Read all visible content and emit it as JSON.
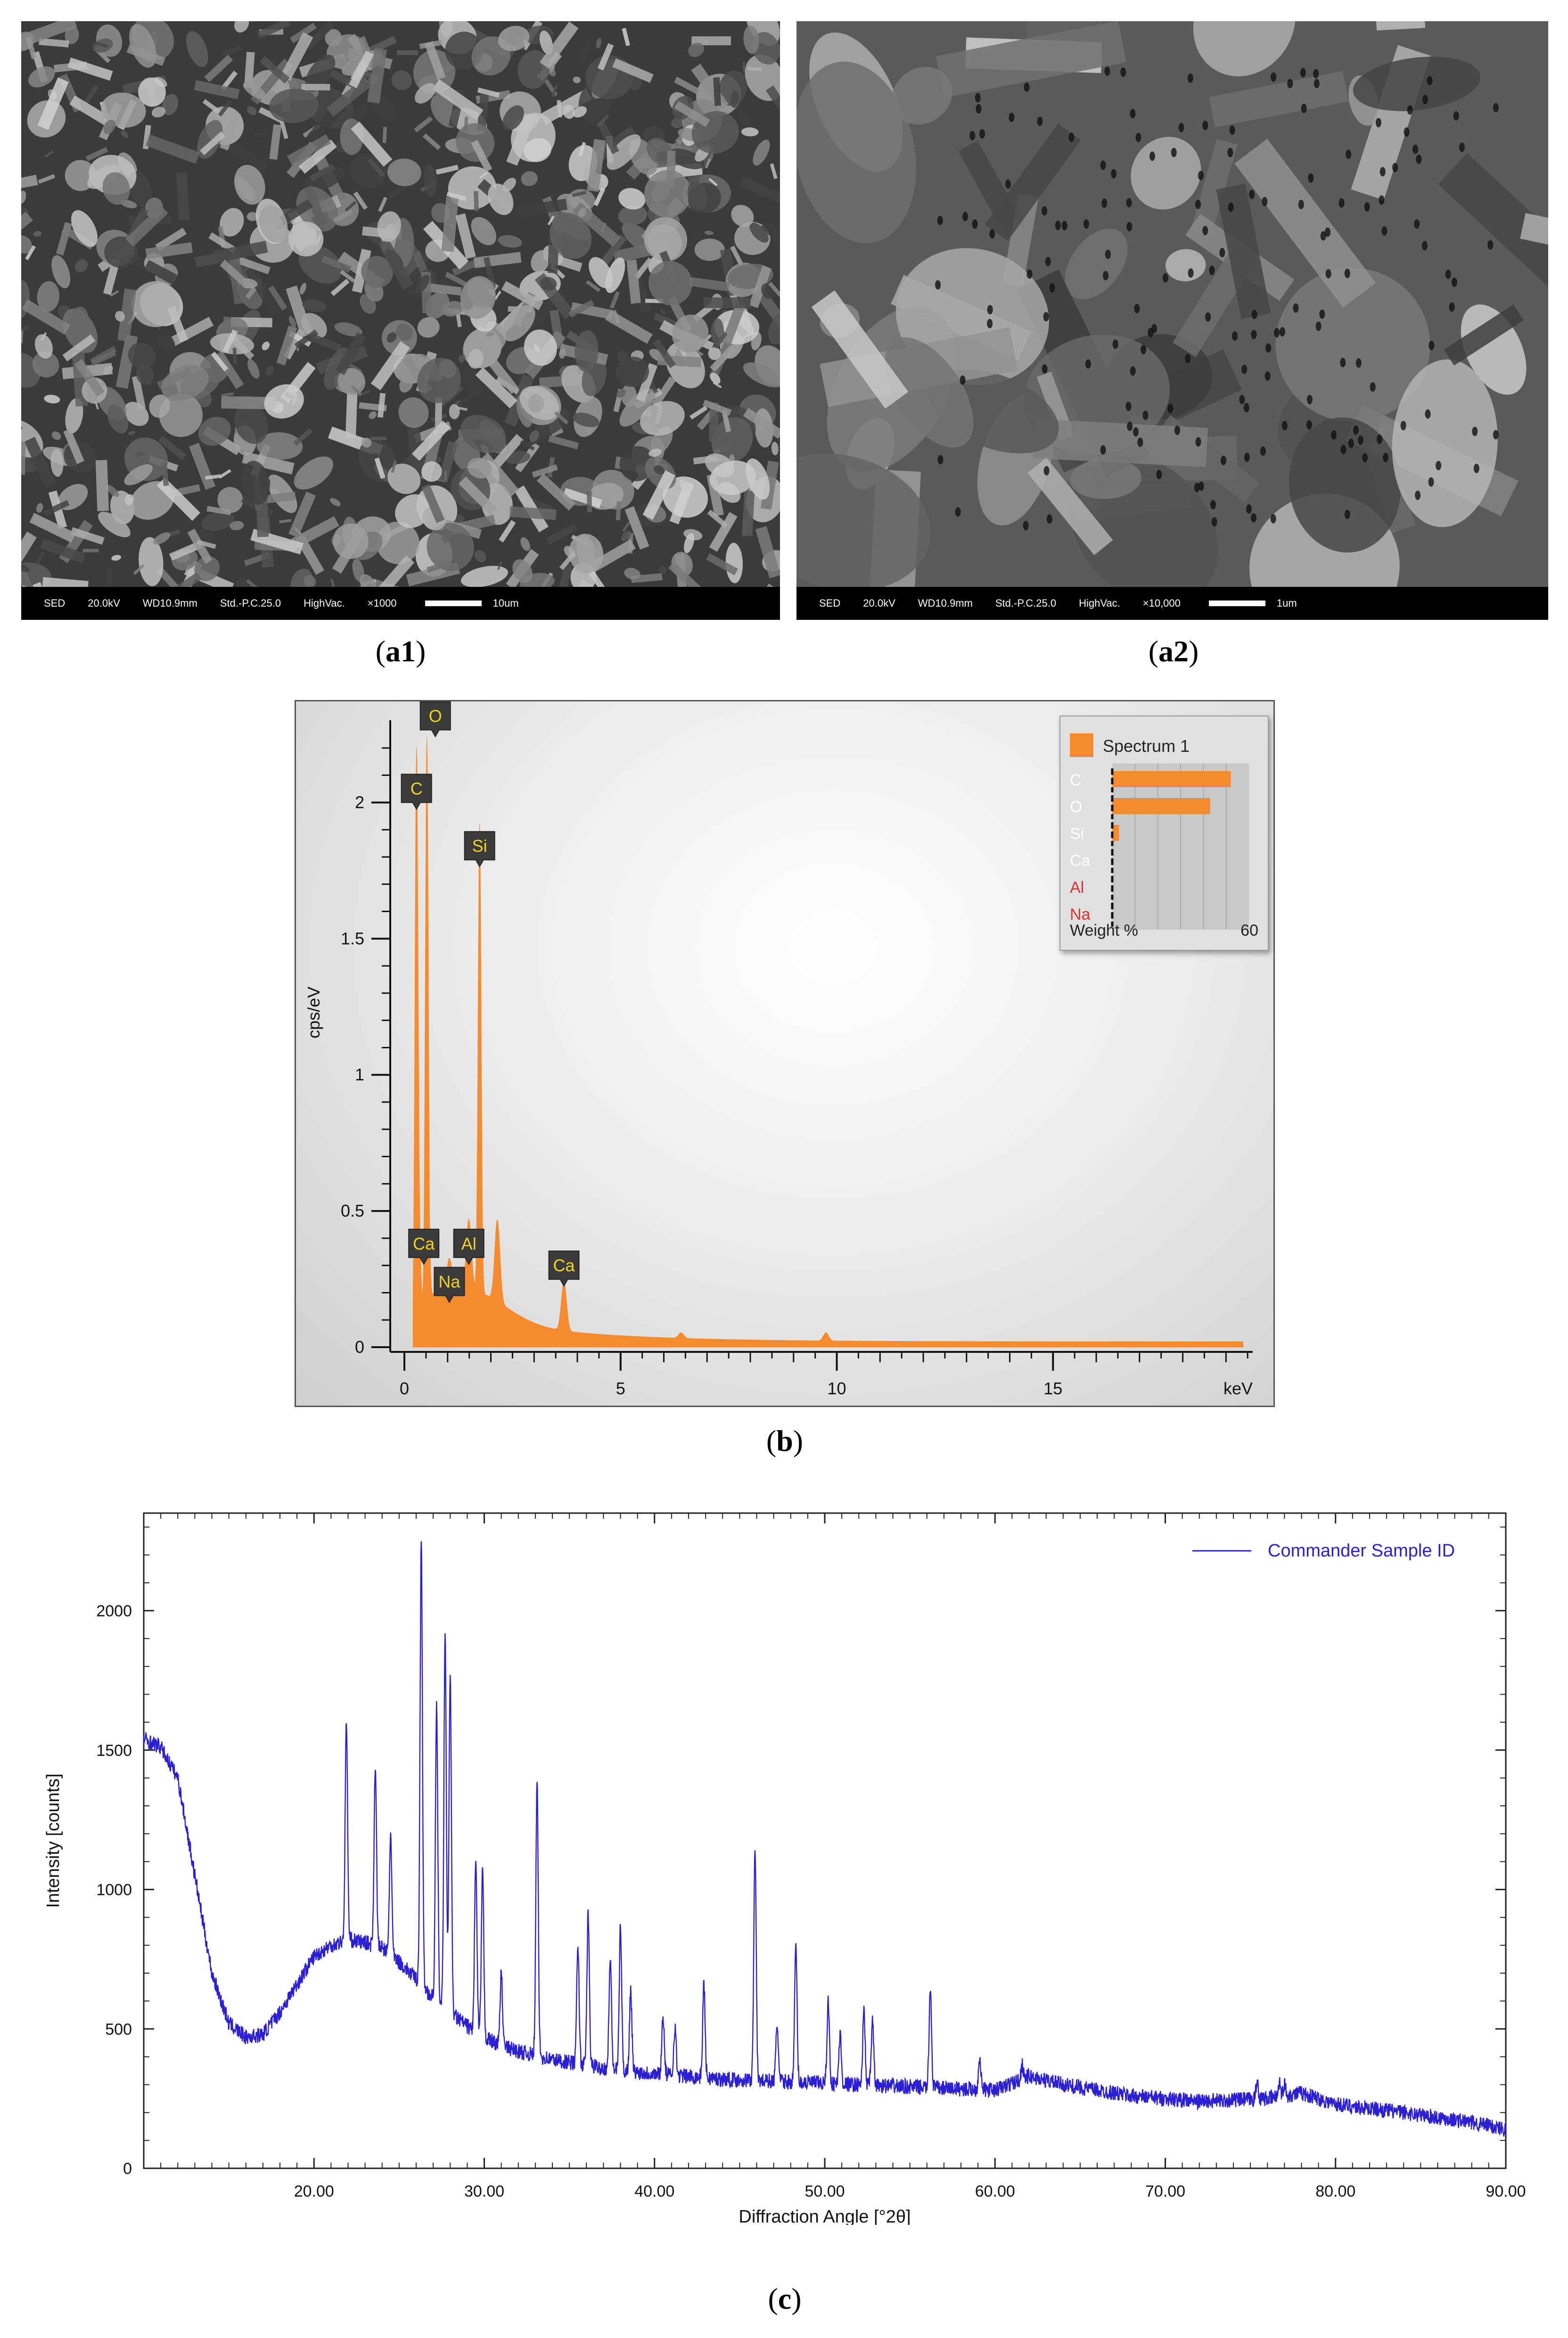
{
  "panels": {
    "a1": {
      "label_main": "a",
      "label_num": "1"
    },
    "a2": {
      "label_main": "a",
      "label_num": "2"
    },
    "b": {
      "label_main": "b"
    },
    "c": {
      "label_main": "c"
    }
  },
  "sem_images": [
    {
      "mode": "SED",
      "voltage": "20.0kV",
      "wd": "WD10.9mm",
      "std": "Std.-P.C.25.0",
      "vac": "HighVac.",
      "mag": "×1000",
      "scale": "10um"
    },
    {
      "mode": "SED",
      "voltage": "20.0kV",
      "wd": "WD10.9mm",
      "std": "Std.-P.C.25.0",
      "vac": "HighVac.",
      "mag": "×10,000",
      "scale": "1um"
    }
  ],
  "colors": {
    "eds_fill": "#F58B2E",
    "xrd_line": "#2B1FD6",
    "legend_red": "#E03030"
  },
  "chart_data": [
    {
      "type": "area",
      "panel": "b",
      "ylabel": "cps/eV",
      "xlabel": "keV",
      "xlim": [
        0,
        20
      ],
      "ylim": [
        0,
        2.25
      ],
      "xticks": [
        "0",
        "5",
        "10",
        "15"
      ],
      "yticks": [
        "0",
        "0.5",
        "1",
        "1.5",
        "2"
      ],
      "peaks": [
        {
          "element": "C",
          "x": 0.28,
          "y": 2.0
        },
        {
          "element": "O",
          "x": 0.52,
          "y": 2.18
        },
        {
          "element": "Ca",
          "x": 0.34,
          "y": 0.26
        },
        {
          "element": "Na",
          "x": 1.04,
          "y": 0.12
        },
        {
          "element": "Al",
          "x": 1.49,
          "y": 0.26
        },
        {
          "element": "Si",
          "x": 1.74,
          "y": 1.72
        },
        {
          "element": "Ca",
          "x": 3.69,
          "y": 0.18
        }
      ],
      "minor_peaks": [
        {
          "x": 2.15,
          "y": 0.3
        },
        {
          "x": 9.75,
          "y": 0.03
        },
        {
          "x": 6.4,
          "y": 0.02
        }
      ],
      "legend": {
        "title": "Spectrum 1",
        "elements": [
          {
            "name": "C",
            "weight": 52,
            "color": "#ffffff"
          },
          {
            "name": "O",
            "weight": 43,
            "color": "#ffffff"
          },
          {
            "name": "Si",
            "weight": 3,
            "color": "#ffffff"
          },
          {
            "name": "Ca",
            "weight": 0,
            "color": "#ffffff"
          },
          {
            "name": "Al",
            "weight": 0,
            "color": "#E03030"
          },
          {
            "name": "Na",
            "weight": 0,
            "color": "#E03030"
          }
        ],
        "axis_label": "Weight %",
        "axis_max": "60"
      }
    },
    {
      "type": "line",
      "panel": "c",
      "xlabel": "Diffraction Angle [°2θ]",
      "ylabel": "Intensity [counts]",
      "xlim": [
        10,
        90
      ],
      "ylim": [
        0,
        2350
      ],
      "xticks": [
        "20.00",
        "30.00",
        "40.00",
        "50.00",
        "60.00",
        "70.00",
        "80.00",
        "90.00"
      ],
      "yticks": [
        "0",
        "500",
        "1000",
        "1500",
        "2000"
      ],
      "series": [
        {
          "name": "Commander Sample ID",
          "baseline": [
            [
              10,
              1540
            ],
            [
              11,
              1510
            ],
            [
              12,
              1400
            ],
            [
              13,
              1050
            ],
            [
              14,
              700
            ],
            [
              15,
              520
            ],
            [
              16,
              470
            ],
            [
              17,
              480
            ],
            [
              18,
              560
            ],
            [
              19,
              660
            ],
            [
              20,
              760
            ],
            [
              21,
              800
            ],
            [
              22,
              820
            ],
            [
              23,
              810
            ],
            [
              24,
              790
            ],
            [
              25,
              740
            ],
            [
              26,
              680
            ],
            [
              27,
              610
            ],
            [
              28,
              560
            ],
            [
              29,
              510
            ],
            [
              30,
              470
            ],
            [
              31,
              440
            ],
            [
              32,
              420
            ],
            [
              34,
              390
            ],
            [
              36,
              370
            ],
            [
              38,
              350
            ],
            [
              40,
              340
            ],
            [
              44,
              320
            ],
            [
              48,
              310
            ],
            [
              52,
              300
            ],
            [
              56,
              290
            ],
            [
              60,
              280
            ],
            [
              62,
              330
            ],
            [
              64,
              300
            ],
            [
              68,
              260
            ],
            [
              72,
              240
            ],
            [
              76,
              250
            ],
            [
              78,
              270
            ],
            [
              80,
              230
            ],
            [
              84,
              200
            ],
            [
              88,
              165
            ],
            [
              90,
              140
            ]
          ],
          "peaks": [
            [
              21.9,
              1600
            ],
            [
              23.6,
              1450
            ],
            [
              24.5,
              1200
            ],
            [
              26.3,
              2250
            ],
            [
              27.2,
              1650
            ],
            [
              27.7,
              1920
            ],
            [
              28.0,
              1780
            ],
            [
              29.5,
              1100
            ],
            [
              29.9,
              1060
            ],
            [
              31.0,
              700
            ],
            [
              33.1,
              1380
            ],
            [
              35.5,
              800
            ],
            [
              36.1,
              910
            ],
            [
              37.4,
              760
            ],
            [
              38.0,
              870
            ],
            [
              38.6,
              640
            ],
            [
              40.5,
              550
            ],
            [
              41.2,
              510
            ],
            [
              42.9,
              660
            ],
            [
              45.9,
              1160
            ],
            [
              47.2,
              520
            ],
            [
              48.3,
              800
            ],
            [
              50.2,
              600
            ],
            [
              50.9,
              480
            ],
            [
              52.3,
              560
            ],
            [
              52.8,
              530
            ],
            [
              56.2,
              650
            ],
            [
              59.1,
              400
            ],
            [
              61.6,
              370
            ],
            [
              75.4,
              310
            ],
            [
              76.7,
              310
            ],
            [
              77.0,
              300
            ]
          ]
        }
      ]
    }
  ]
}
